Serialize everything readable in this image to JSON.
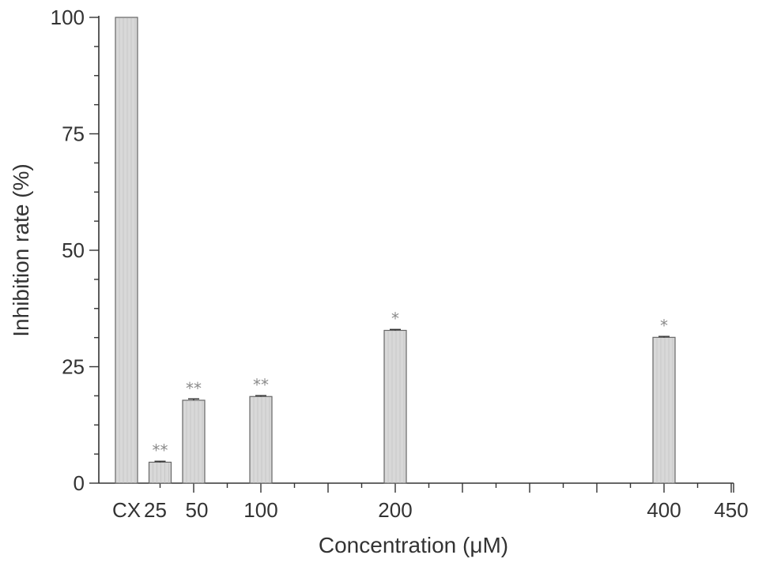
{
  "chart_data": {
    "type": "bar",
    "title": "",
    "xlabel": "Concentration (μM)",
    "ylabel": "Inhibition rate (%)",
    "ylim": [
      0,
      100
    ],
    "yticks": [
      "0",
      "25",
      "50",
      "75",
      "100"
    ],
    "xlim": [
      0,
      450
    ],
    "xticks": [
      "25",
      "50",
      "100",
      "200",
      "400",
      "450"
    ],
    "categories": [
      "CX",
      "25",
      "50",
      "100",
      "200",
      "400"
    ],
    "values": [
      100,
      4.5,
      17.8,
      18.6,
      32.8,
      31.3
    ],
    "errors": [
      0,
      0.2,
      0.3,
      0.2,
      0.2,
      0.2
    ],
    "significance": [
      "",
      "**",
      "**",
      "**",
      "*",
      "*"
    ],
    "grid": false,
    "bar_color": "#d8d8d8"
  }
}
